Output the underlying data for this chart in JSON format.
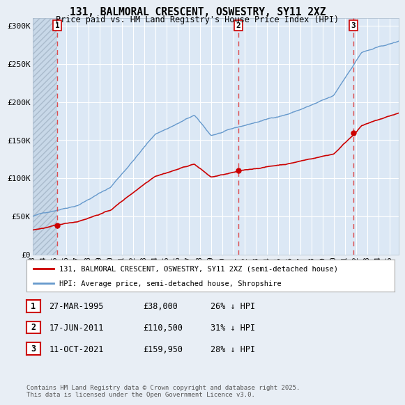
{
  "title": "131, BALMORAL CRESCENT, OSWESTRY, SY11 2XZ",
  "subtitle": "Price paid vs. HM Land Registry's House Price Index (HPI)",
  "background_color": "#e8eef5",
  "plot_bg_color": "#dce8f5",
  "grid_color": "#ffffff",
  "hatch_color": "#c8d4e0",
  "sale_dates_year": [
    1995.23,
    2011.46,
    2021.78
  ],
  "sale_prices": [
    38000,
    110500,
    159950
  ],
  "sale_labels": [
    "1",
    "2",
    "3"
  ],
  "legend_entries": [
    "131, BALMORAL CRESCENT, OSWESTRY, SY11 2XZ (semi-detached house)",
    "HPI: Average price, semi-detached house, Shropshire"
  ],
  "table_rows": [
    [
      "1",
      "27-MAR-1995",
      "£38,000",
      "26% ↓ HPI"
    ],
    [
      "2",
      "17-JUN-2011",
      "£110,500",
      "31% ↓ HPI"
    ],
    [
      "3",
      "11-OCT-2021",
      "£159,950",
      "28% ↓ HPI"
    ]
  ],
  "footer": "Contains HM Land Registry data © Crown copyright and database right 2025.\nThis data is licensed under the Open Government Licence v3.0.",
  "red_line_color": "#cc0000",
  "blue_line_color": "#6699cc",
  "dashed_line_color": "#dd3333",
  "ylim": [
    0,
    310000
  ],
  "xlim_start": 1993.0,
  "xlim_end": 2025.8,
  "yticks": [
    0,
    50000,
    100000,
    150000,
    200000,
    250000,
    300000
  ],
  "ytick_labels": [
    "£0",
    "£50K",
    "£100K",
    "£150K",
    "£200K",
    "£250K",
    "£300K"
  ],
  "xtick_years": [
    1993,
    1994,
    1995,
    1996,
    1997,
    1998,
    1999,
    2000,
    2001,
    2002,
    2003,
    2004,
    2005,
    2006,
    2007,
    2008,
    2009,
    2010,
    2011,
    2012,
    2013,
    2014,
    2015,
    2016,
    2017,
    2018,
    2019,
    2020,
    2021,
    2022,
    2023,
    2024,
    2025
  ]
}
